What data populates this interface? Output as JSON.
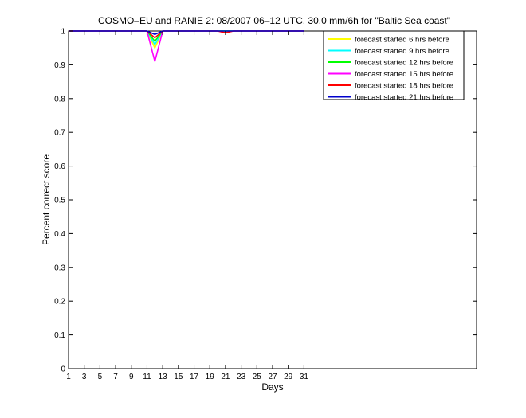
{
  "chart_data": {
    "type": "line",
    "title": "COSMO–EU and RANIE 2: 08/2007 06–12 UTC, 30.0 mm/6h for \"Baltic Sea coast\"",
    "xlabel": "Days",
    "ylabel": "Percent correct score",
    "xlim": [
      1,
      53
    ],
    "ylim": [
      0,
      1
    ],
    "x_ticks": [
      "1",
      "3",
      "5",
      "7",
      "9",
      "11",
      "13",
      "15",
      "17",
      "19",
      "21",
      "23",
      "25",
      "27",
      "29",
      "31"
    ],
    "y_ticks": [
      "0",
      "0.1",
      "0.2",
      "0.3",
      "0.4",
      "0.5",
      "0.6",
      "0.7",
      "0.8",
      "0.9",
      "1"
    ],
    "x": [
      1,
      2,
      3,
      4,
      5,
      6,
      7,
      8,
      9,
      10,
      11,
      12,
      13,
      14,
      15,
      16,
      17,
      18,
      19,
      20,
      21,
      22,
      23,
      24,
      25,
      26,
      27,
      28,
      29,
      30,
      31
    ],
    "legend_position": "top-right",
    "grid": false,
    "series": [
      {
        "name": "forecast started 6 hrs before",
        "color": "#ffff00",
        "values": [
          1,
          1,
          1,
          1,
          1,
          1,
          1,
          1,
          1,
          1,
          1,
          0.95,
          1,
          1,
          1,
          1,
          1,
          1,
          1,
          1,
          1,
          1,
          1,
          1,
          1,
          1,
          1,
          1,
          1,
          1,
          1
        ]
      },
      {
        "name": "forecast started 9 hrs before",
        "color": "#00ffff",
        "values": [
          1,
          1,
          1,
          1,
          1,
          1,
          1,
          1,
          1,
          1,
          1,
          0.96,
          1,
          1,
          1,
          1,
          1,
          1,
          1,
          1,
          1,
          1,
          1,
          1,
          1,
          1,
          1,
          1,
          1,
          1,
          1
        ]
      },
      {
        "name": "forecast started 12 hrs before",
        "color": "#00ff00",
        "values": [
          1,
          1,
          1,
          1,
          1,
          1,
          1,
          1,
          1,
          1,
          1,
          0.97,
          1,
          1,
          1,
          1,
          1,
          1,
          1,
          1,
          1,
          1,
          1,
          1,
          1,
          1,
          1,
          1,
          1,
          1,
          1
        ]
      },
      {
        "name": "forecast started 15 hrs before",
        "color": "#ff00ff",
        "values": [
          1,
          1,
          1,
          1,
          1,
          1,
          1,
          1,
          1,
          1,
          1,
          0.91,
          1,
          1,
          1,
          1,
          1,
          1,
          1,
          1,
          0.995,
          1,
          1,
          1,
          1,
          1,
          1,
          1,
          1,
          1,
          1
        ]
      },
      {
        "name": "forecast started 18 hrs before",
        "color": "#ff0000",
        "values": [
          1,
          1,
          1,
          1,
          1,
          1,
          1,
          1,
          1,
          1,
          1,
          0.98,
          1,
          1,
          1,
          1,
          1,
          1,
          1,
          1,
          0.995,
          1,
          1,
          1,
          1,
          1,
          1,
          1,
          1,
          1,
          1
        ]
      },
      {
        "name": "forecast started 21 hrs before",
        "color": "#0000cc",
        "values": [
          1,
          1,
          1,
          1,
          1,
          1,
          1,
          1,
          1,
          1,
          1,
          0.99,
          1,
          1,
          1,
          1,
          1,
          1,
          1,
          1,
          1,
          1,
          1,
          1,
          1,
          1,
          1,
          1,
          1,
          1,
          1
        ]
      }
    ]
  }
}
